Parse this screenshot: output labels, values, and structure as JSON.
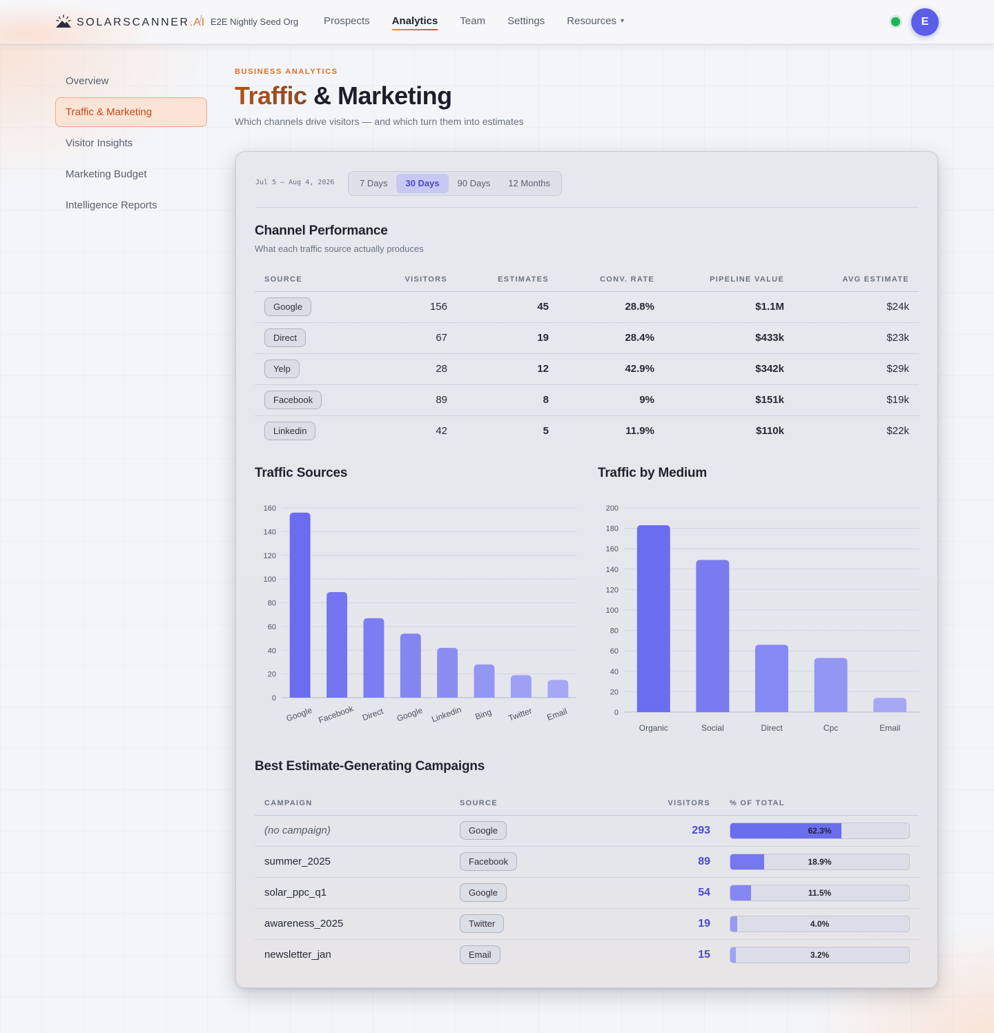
{
  "brand": {
    "name": "SOLARSCANNER",
    "suffix": ".AI",
    "logo_icon": "sun-mountain-icon"
  },
  "org": {
    "separator": "/",
    "name": "E2E Nightly Seed Org"
  },
  "nav": {
    "items": [
      {
        "label": "Prospects"
      },
      {
        "label": "Analytics",
        "active": true
      },
      {
        "label": "Team"
      },
      {
        "label": "Settings"
      },
      {
        "label": "Resources",
        "dropdown": true
      }
    ],
    "chevron": "▾"
  },
  "user": {
    "avatar_initial": "E",
    "status": "online",
    "status_color": "#1fb25a",
    "avatar_color": "#5b5ee8"
  },
  "sidebar": {
    "items": [
      {
        "label": "Overview"
      },
      {
        "label": "Traffic & Marketing",
        "active": true
      },
      {
        "label": "Visitor Insights"
      },
      {
        "label": "Marketing Budget"
      },
      {
        "label": "Intelligence Reports"
      }
    ]
  },
  "header": {
    "eyebrow": "BUSINESS ANALYTICS",
    "title_accent": "Traffic",
    "title_rest": " & Marketing",
    "subtitle": "Which channels drive visitors — and which turn them into estimates"
  },
  "range": {
    "dates": "Jul 5 – Aug 4, 2026",
    "tabs": [
      {
        "label": "7 Days"
      },
      {
        "label": "30 Days",
        "active": true
      },
      {
        "label": "90 Days"
      },
      {
        "label": "12 Months"
      }
    ]
  },
  "channel_performance": {
    "title": "Channel Performance",
    "subtitle": "What each traffic source actually produces",
    "columns": [
      "SOURCE",
      "VISITORS",
      "ESTIMATES",
      "CONV. RATE",
      "PIPELINE VALUE",
      "AVG ESTIMATE"
    ],
    "rows": [
      [
        "Google",
        "156",
        "45",
        "28.8%",
        "$1.1M",
        "$24k"
      ],
      [
        "Direct",
        "67",
        "19",
        "28.4%",
        "$433k",
        "$23k"
      ],
      [
        "Yelp",
        "28",
        "12",
        "42.9%",
        "$342k",
        "$29k"
      ],
      [
        "Facebook",
        "89",
        "8",
        "9%",
        "$151k",
        "$19k"
      ],
      [
        "Linkedin",
        "42",
        "5",
        "11.9%",
        "$110k",
        "$22k"
      ]
    ]
  },
  "traffic_sources": {
    "title": "Traffic Sources"
  },
  "traffic_medium": {
    "title": "Traffic by Medium"
  },
  "chart_data": [
    {
      "type": "bar",
      "title": "Traffic Sources",
      "categories": [
        "Google",
        "Facebook",
        "Direct",
        "Google",
        "Linkedin",
        "Bing",
        "Twitter",
        "Email"
      ],
      "values": [
        156,
        89,
        67,
        54,
        42,
        28,
        19,
        15
      ],
      "ylim": [
        0,
        160
      ],
      "yticks": [
        0,
        20,
        40,
        60,
        80,
        100,
        120,
        140,
        160
      ],
      "grid": true,
      "xlabel": "",
      "ylabel": "",
      "colors": [
        "#6b6df0",
        "#7375f1",
        "#7b7df2",
        "#8385f3",
        "#8b8df3",
        "#9496f4",
        "#9d9ff5",
        "#a6a8f6"
      ]
    },
    {
      "type": "bar",
      "title": "Traffic by Medium",
      "categories": [
        "Organic",
        "Social",
        "Direct",
        "Cpc",
        "Email"
      ],
      "values": [
        183,
        149,
        66,
        53,
        14
      ],
      "ylim": [
        0,
        200
      ],
      "yticks": [
        0,
        20,
        40,
        60,
        80,
        100,
        120,
        140,
        160,
        180,
        200
      ],
      "grid": true,
      "xlabel": "",
      "ylabel": "",
      "colors": [
        "#6b6df0",
        "#797bf1",
        "#8688f3",
        "#9496f4",
        "#a6a8f6"
      ]
    }
  ],
  "campaigns": {
    "title": "Best Estimate-Generating Campaigns",
    "columns": [
      "CAMPAIGN",
      "SOURCE",
      "VISITORS",
      "% OF TOTAL"
    ],
    "rows": [
      {
        "campaign": "(no campaign)",
        "italic": true,
        "source": "Google",
        "visitors": "293",
        "pct_label": "62.3%",
        "pct": 62.3,
        "color": "#6b6df0"
      },
      {
        "campaign": "summer_2025",
        "source": "Facebook",
        "visitors": "89",
        "pct_label": "18.9%",
        "pct": 18.9,
        "color": "#7577f1"
      },
      {
        "campaign": "solar_ppc_q1",
        "source": "Google",
        "visitors": "54",
        "pct_label": "11.5%",
        "pct": 11.5,
        "color": "#8587f3"
      },
      {
        "campaign": "awareness_2025",
        "source": "Twitter",
        "visitors": "19",
        "pct_label": "4.0%",
        "pct": 4.0,
        "color": "#9799f5"
      },
      {
        "campaign": "newsletter_jan",
        "source": "Email",
        "visitors": "15",
        "pct_label": "3.2%",
        "pct": 3.2,
        "color": "#9fa1f5"
      }
    ]
  }
}
